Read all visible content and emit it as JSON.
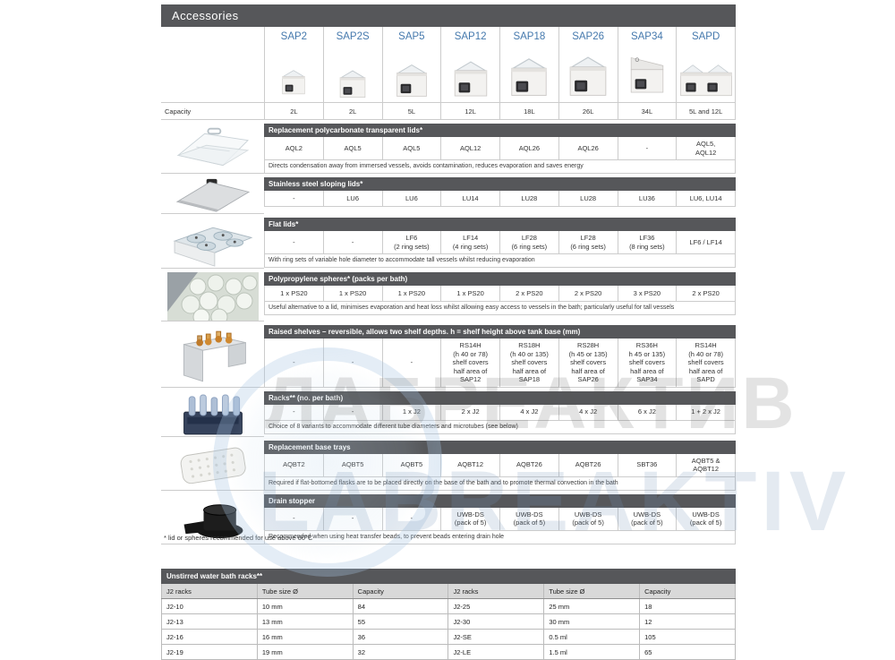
{
  "page": {
    "title": "Accessories",
    "footnote": "* lid or spheres recommended for use above 60°C"
  },
  "products": {
    "names": [
      "SAP2",
      "SAP2S",
      "SAP5",
      "SAP12",
      "SAP18",
      "SAP26",
      "SAP34",
      "SAPD"
    ],
    "capacity_label": "Capacity",
    "capacities": [
      "2L",
      "2L",
      "5L",
      "12L",
      "18L",
      "26L",
      "34L",
      "5L and 12L"
    ]
  },
  "sections": [
    {
      "title": "Replacement polycarbonate transparent lids*",
      "icon": "transparent-lid",
      "values": [
        [
          "AQL2"
        ],
        [
          "AQL5"
        ],
        [
          "AQL5"
        ],
        [
          "AQL12"
        ],
        [
          "AQL26"
        ],
        [
          "AQL26"
        ],
        [
          "-"
        ],
        [
          "AQL5,",
          "AQL12"
        ]
      ],
      "note": "Directs condensation away from immersed vessels, avoids contamination, reduces evaporation and saves energy"
    },
    {
      "title": "Stainless steel sloping lids*",
      "icon": "sloping-lid",
      "values": [
        [
          "-"
        ],
        [
          "LU6"
        ],
        [
          "LU6"
        ],
        [
          "LU14"
        ],
        [
          "LU28"
        ],
        [
          "LU28"
        ],
        [
          "LU36"
        ],
        [
          "LU6, LU14"
        ]
      ],
      "note": ""
    },
    {
      "title": "Flat lids*",
      "icon": "flat-lid",
      "values": [
        [
          "-"
        ],
        [
          "-"
        ],
        [
          "LF6",
          "(2 ring sets)"
        ],
        [
          "LF14",
          "(4 ring sets)"
        ],
        [
          "LF28",
          "(6 ring sets)"
        ],
        [
          "LF28",
          "(6 ring sets)"
        ],
        [
          "LF36",
          "(8 ring sets)"
        ],
        [
          "LF6 / LF14"
        ]
      ],
      "note": "With ring sets of variable hole diameter to accommodate tall vessels whilst reducing evaporation"
    },
    {
      "title": "Polypropylene spheres* (packs per bath)",
      "icon": "spheres",
      "values": [
        [
          "1 x PS20"
        ],
        [
          "1 x PS20"
        ],
        [
          "1 x PS20"
        ],
        [
          "1 x PS20"
        ],
        [
          "2 x PS20"
        ],
        [
          "2 x PS20"
        ],
        [
          "3 x PS20"
        ],
        [
          "2 x PS20"
        ]
      ],
      "note": "Useful alternative to a lid, minimises evaporation and heat loss whilst allowing easy access to vessels in the bath; particularly useful for tall vessels"
    },
    {
      "title": "Raised shelves – reversible, allows two shelf depths. h = shelf height above tank base (mm)",
      "icon": "raised-shelf",
      "values": [
        [
          "-"
        ],
        [
          "-"
        ],
        [
          "-"
        ],
        [
          "RS14H",
          "(h 40 or 78)",
          "shelf covers",
          "half area of",
          "SAP12"
        ],
        [
          "RS18H",
          "(h 40 or 135)",
          "shelf covers",
          "half area of",
          "SAP18"
        ],
        [
          "RS28H",
          "(h 45 or 135)",
          "shelf covers",
          "half area of",
          "SAP26"
        ],
        [
          "RS36H",
          "h 45 or 135)",
          "shelf covers",
          "half area of",
          "SAP34"
        ],
        [
          "RS14H",
          "(h 40 or 78)",
          "shelf covers",
          "half area of",
          "SAPD"
        ]
      ],
      "note": ""
    },
    {
      "title": "Racks** (no. per bath)",
      "icon": "tube-rack",
      "values": [
        [
          "-"
        ],
        [
          "-"
        ],
        [
          "1 x J2"
        ],
        [
          "2 x J2"
        ],
        [
          "4 x J2"
        ],
        [
          "4 x J2"
        ],
        [
          "6 x J2"
        ],
        [
          "1 + 2 x J2"
        ]
      ],
      "note": "Choice of 8 variants to accommodate different tube diameters and microtubes (see below)"
    },
    {
      "title": "Replacement base trays",
      "icon": "base-tray",
      "values": [
        [
          "AQBT2"
        ],
        [
          "AQBT5"
        ],
        [
          "AQBT5"
        ],
        [
          "AQBT12"
        ],
        [
          "AQBT26"
        ],
        [
          "AQBT26"
        ],
        [
          "SBT36"
        ],
        [
          "AQBT5 &",
          "AQBT12"
        ]
      ],
      "note": "Required if flat-bottomed flasks are to be placed directly on the base of the bath and to promote thermal convection in the bath"
    },
    {
      "title": "Drain stopper",
      "icon": "drain-stopper",
      "values": [
        [
          "-"
        ],
        [
          "-"
        ],
        [
          "-"
        ],
        [
          "UWB-DS",
          "(pack of 5)"
        ],
        [
          "UWB-DS",
          "(pack of 5)"
        ],
        [
          "UWB-DS",
          "(pack of 5)"
        ],
        [
          "UWB-DS",
          "(pack of 5)"
        ],
        [
          "UWB-DS",
          "(pack of 5)"
        ]
      ],
      "note": "Recommended when using heat transfer beads, to prevent beads entering drain hole"
    }
  ],
  "racks_table": {
    "title": "Unstirred water bath racks**",
    "headers": [
      "J2 racks",
      "Tube size Ø",
      "Capacity",
      "J2 racks",
      "Tube size Ø",
      "Capacity"
    ],
    "rows": [
      [
        "J2-10",
        "10 mm",
        "84",
        "J2-25",
        "25 mm",
        "18"
      ],
      [
        "J2-13",
        "13 mm",
        "55",
        "J2-30",
        "30 mm",
        "12"
      ],
      [
        "J2-16",
        "16 mm",
        "36",
        "J2-SE",
        "0.5 ml",
        "105"
      ],
      [
        "J2-19",
        "19 mm",
        "32",
        "J2-LE",
        "1.5 ml",
        "65"
      ]
    ]
  },
  "watermark": {
    "line1": "ЛАБРЕАКТИВ",
    "line2": "LABREAKTIV",
    "circle_color": "#a5c5e0"
  },
  "colors": {
    "section_bar": "#56575a",
    "product_name_blue": "#4579ad",
    "table_header_bg": "#d9d9d9",
    "cell_border": "#cccccc"
  }
}
